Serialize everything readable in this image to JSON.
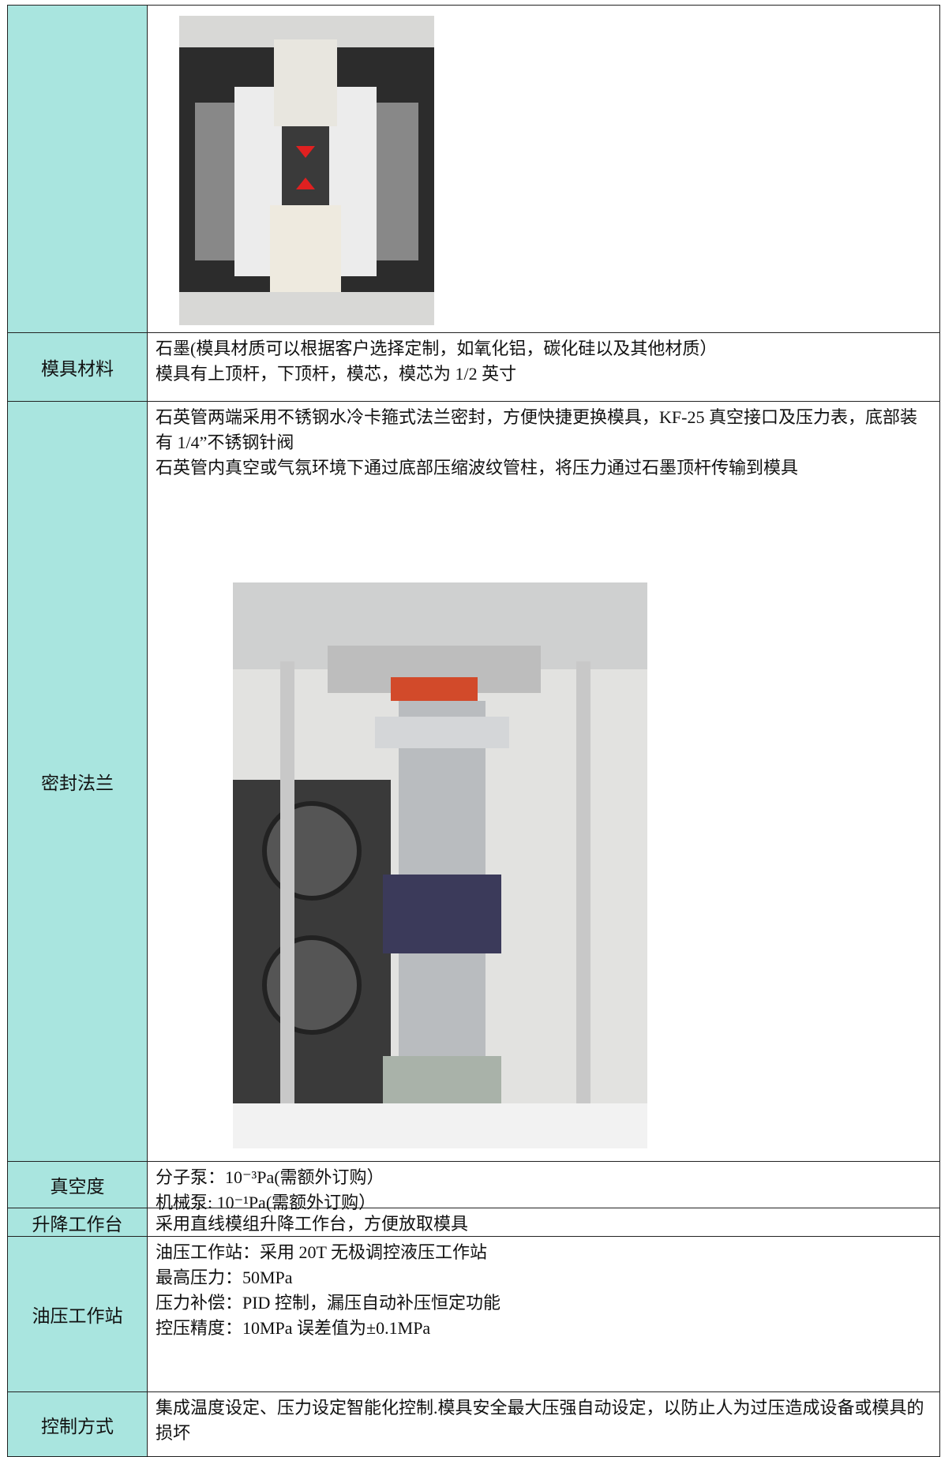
{
  "rows": [
    {
      "lines": []
    },
    {
      "label": "模具材料",
      "lines": [
        "石墨(模具材质可以根据客户选择定制，如氧化铝，碳化硅以及其他材质）",
        "模具有上顶杆，下顶杆，模芯，模芯为 1/2 英寸"
      ]
    },
    {
      "label": "密封法兰",
      "lines": [
        "石英管两端采用不锈钢水冷卡箍式法兰密封，方便快捷更换模具，KF-25 真空接口及压力表，底部装有 1/4”不锈钢针阀",
        "石英管内真空或气氛环境下通过底部压缩波纹管柱，将压力通过石墨顶杆传输到模具"
      ]
    },
    {
      "label": "真空度",
      "lines": [
        "分子泵：10⁻³Pa(需额外订购）",
        "机械泵: 10⁻¹Pa(需额外订购）"
      ]
    },
    {
      "label": "升降工作台",
      "lines": [
        "采用直线模组升降工作台，方便放取模具"
      ]
    },
    {
      "label": "油压工作站",
      "lines": [
        "油压工作站：采用 20T 无极调控液压工作站",
        "最高压力：50MPa",
        "压力补偿：PID 控制，漏压自动补压恒定功能",
        "控压精度：10MPa 误差值为±0.1MPa"
      ]
    },
    {
      "label": "控制方式",
      "lines": [
        "集成温度设定、压力设定智能化控制.模具安全最大压强自动设定，以防止人为过压造成设备或模具的损坏"
      ]
    }
  ]
}
